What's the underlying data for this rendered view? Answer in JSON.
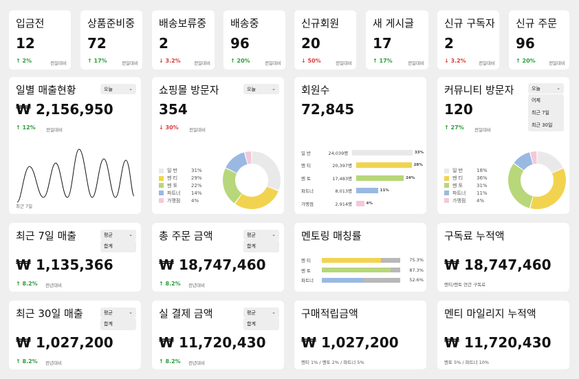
{
  "stats": [
    {
      "title": "입금전",
      "value": "12",
      "pct": "2%",
      "trend": "up",
      "cmp": "전일대비"
    },
    {
      "title": "상품준비중",
      "value": "72",
      "pct": "17%",
      "trend": "up",
      "cmp": "전일대비"
    },
    {
      "title": "배송보류중",
      "value": "2",
      "pct": "3.2%",
      "trend": "down",
      "cmp": "전일대비"
    },
    {
      "title": "배송중",
      "value": "96",
      "pct": "20%",
      "trend": "up",
      "cmp": "전일대비"
    },
    {
      "title": "신규회원",
      "value": "20",
      "pct": "50%",
      "trend": "down",
      "cmp": "전일대비"
    },
    {
      "title": "새 게시글",
      "value": "17",
      "pct": "17%",
      "trend": "up",
      "cmp": "전일대비"
    },
    {
      "title": "신규 구독자",
      "value": "2",
      "pct": "3.2%",
      "trend": "down",
      "cmp": "전일대비"
    },
    {
      "title": "신규 주문",
      "value": "96",
      "pct": "20%",
      "trend": "up",
      "cmp": "전일대비"
    }
  ],
  "daily_sales": {
    "title": "일별 매출현황",
    "dropdown": "오늘",
    "value": "₩ 2,156,950",
    "pct": "12%",
    "cmp": "전일대비",
    "caption": "최근 7일"
  },
  "mall_visitors": {
    "title": "쇼핑몰 방문자",
    "dropdown": "오늘",
    "value": "354",
    "pct": "30%",
    "cmp": "전일대비",
    "legend": [
      {
        "label": "일 반",
        "pct": "31%",
        "value": 31,
        "color": "#e9e9e9"
      },
      {
        "label": "멘 티",
        "pct": "29%",
        "value": 29,
        "color": "#f2d350"
      },
      {
        "label": "멘 토",
        "pct": "22%",
        "value": 22,
        "color": "#b7d77a"
      },
      {
        "label": "파트너",
        "pct": "14%",
        "value": 14,
        "color": "#99b9e3"
      },
      {
        "label": "가맹점",
        "pct": "4%",
        "value": 4,
        "color": "#f3c9da"
      }
    ]
  },
  "members": {
    "title": "회원수",
    "value": "72,845",
    "rows": [
      {
        "label": "일 반",
        "count": "24,039명",
        "pct": "33%",
        "value": 33,
        "color": "#e9e9e9"
      },
      {
        "label": "멘 티",
        "count": "20,397명",
        "pct": "28%",
        "value": 28,
        "color": "#f2d350"
      },
      {
        "label": "멘 토",
        "count": "17,483명",
        "pct": "24%",
        "value": 24,
        "color": "#b7d77a"
      },
      {
        "label": "파트너",
        "count": "8,013명",
        "pct": "11%",
        "value": 11,
        "color": "#99b9e3"
      },
      {
        "label": "가맹점",
        "count": "2,914명",
        "pct": "4%",
        "value": 4,
        "color": "#f3c9da"
      }
    ]
  },
  "community_visitors": {
    "title": "커뮤니티 방문자",
    "dropdown": "오늘",
    "menu": [
      "어제",
      "최근 7일",
      "최근 30일"
    ],
    "value": "120",
    "pct": "27%",
    "cmp": "전일대비",
    "legend": [
      {
        "label": "일 반",
        "pct": "18%",
        "value": 18,
        "color": "#e9e9e9"
      },
      {
        "label": "멘 티",
        "pct": "36%",
        "value": 36,
        "color": "#f2d350"
      },
      {
        "label": "멘 토",
        "pct": "31%",
        "value": 31,
        "color": "#b7d77a"
      },
      {
        "label": "파트너",
        "pct": "11%",
        "value": 11,
        "color": "#99b9e3"
      },
      {
        "label": "가맹점",
        "pct": "4%",
        "value": 4,
        "color": "#f3c9da"
      }
    ]
  },
  "sales7": {
    "title": "최근 7일 매출",
    "dropdown": "평균",
    "option": "합계",
    "value": "₩ 1,135,366",
    "pct": "8.2%",
    "cmp": "전년대비"
  },
  "total_orders": {
    "title": "총 주문 금액",
    "dropdown": "평균",
    "option": "합계",
    "value": "₩ 18,747,460",
    "pct": "8.2%",
    "cmp": "전년대비"
  },
  "mentoring": {
    "title": "멘토링 매칭률",
    "rows": [
      {
        "label": "멘 티",
        "pct": "75.3%",
        "value": 75.3,
        "color": "#f2d350"
      },
      {
        "label": "멘 토",
        "pct": "87.3%",
        "value": 87.3,
        "color": "#b7d77a"
      },
      {
        "label": "파트너",
        "pct": "52.6%",
        "value": 52.6,
        "color": "#99b9e3"
      }
    ]
  },
  "subscription": {
    "title": "구독료 누적액",
    "value": "₩ 18,747,460",
    "note": "멘티/멘토 연간 구독료"
  },
  "sales30": {
    "title": "최근 30일 매출",
    "dropdown": "평균",
    "option": "합계",
    "value": "₩ 1,027,200",
    "pct": "8.2%",
    "cmp": "전년대비"
  },
  "paid": {
    "title": "실 결제 금액",
    "dropdown": "평균",
    "option": "합계",
    "value": "₩ 11,720,430",
    "pct": "8.2%",
    "cmp": "전년대비"
  },
  "points": {
    "title": "구매적립금액",
    "value": "₩ 1,027,200",
    "note": "멘티 1% / 멘토 2% / 파트너 5%"
  },
  "mileage": {
    "title": "멘티 마일리지 누적액",
    "value": "₩ 11,720,430",
    "note": "멘토 5% / 파트너 10%"
  },
  "chevron": "⌄",
  "colors": {
    "up": "#2a9d3a",
    "down": "#d83b3b",
    "track": "#b8b8b8"
  }
}
